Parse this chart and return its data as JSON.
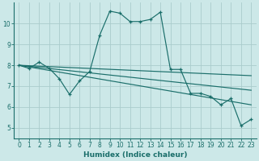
{
  "xlabel": "Humidex (Indice chaleur)",
  "bg_color": "#cce8e8",
  "grid_color": "#aacccc",
  "line_color": "#1a6e6a",
  "xlim": [
    -0.5,
    23.5
  ],
  "ylim": [
    4.5,
    11.0
  ],
  "xticks": [
    0,
    1,
    2,
    3,
    4,
    5,
    6,
    7,
    8,
    9,
    10,
    11,
    12,
    13,
    14,
    15,
    16,
    17,
    18,
    19,
    20,
    21,
    22,
    23
  ],
  "yticks": [
    5,
    6,
    7,
    8,
    9,
    10
  ],
  "series": [
    [
      0,
      8.0
    ],
    [
      1,
      7.85
    ],
    [
      2,
      8.15
    ],
    [
      3,
      7.85
    ],
    [
      4,
      7.35
    ],
    [
      5,
      6.6
    ],
    [
      6,
      7.25
    ],
    [
      7,
      7.7
    ],
    [
      8,
      9.45
    ],
    [
      9,
      10.6
    ],
    [
      10,
      10.5
    ],
    [
      11,
      10.1
    ],
    [
      12,
      10.1
    ],
    [
      13,
      10.2
    ],
    [
      14,
      10.55
    ],
    [
      15,
      7.8
    ],
    [
      16,
      7.8
    ],
    [
      17,
      6.65
    ],
    [
      18,
      6.65
    ],
    [
      19,
      6.5
    ],
    [
      20,
      6.1
    ],
    [
      21,
      6.4
    ],
    [
      22,
      5.1
    ],
    [
      23,
      5.4
    ]
  ],
  "trend_lines": [
    {
      "x0": 0,
      "y0": 8.0,
      "x1": 23,
      "y1": 7.5
    },
    {
      "x0": 0,
      "y0": 8.0,
      "x1": 23,
      "y1": 6.8
    },
    {
      "x0": 0,
      "y0": 8.0,
      "x1": 23,
      "y1": 6.1
    }
  ]
}
